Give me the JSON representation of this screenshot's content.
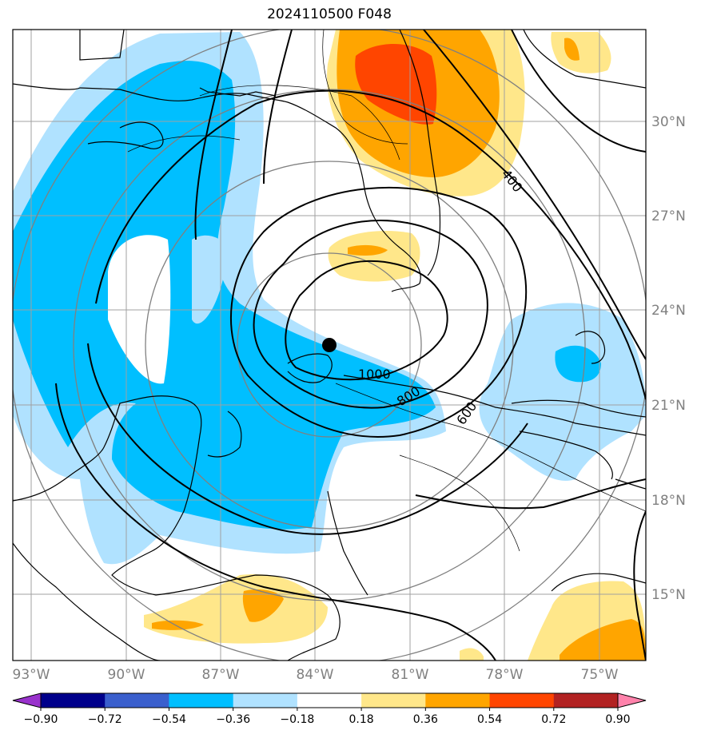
{
  "title": "2024110500 F048",
  "lon_ticks": [
    "93°W",
    "90°W",
    "87°W",
    "84°W",
    "81°W",
    "78°W",
    "75°W"
  ],
  "lat_ticks": [
    "30°N",
    "27°N",
    "24°N",
    "21°N",
    "18°N",
    "15°N"
  ],
  "colorbar": {
    "ticks": [
      "−0.90",
      "−0.72",
      "−0.54",
      "−0.36",
      "−0.18",
      "0.18",
      "0.36",
      "0.54",
      "0.72",
      "0.90"
    ],
    "colors": [
      "#9932cc",
      "#00008b",
      "#3a5fcd",
      "#00bfff",
      "#b0e2ff",
      "#ffffff",
      "#ffe78a",
      "#ffa500",
      "#ff4500",
      "#b22222",
      "#ff82ab"
    ]
  },
  "contour_labels": [
    "1000",
    "800",
    "600",
    "400"
  ],
  "colors": {
    "gridline": "#a0a0a0",
    "range_ring": "#808080",
    "coast": "#000000"
  }
}
